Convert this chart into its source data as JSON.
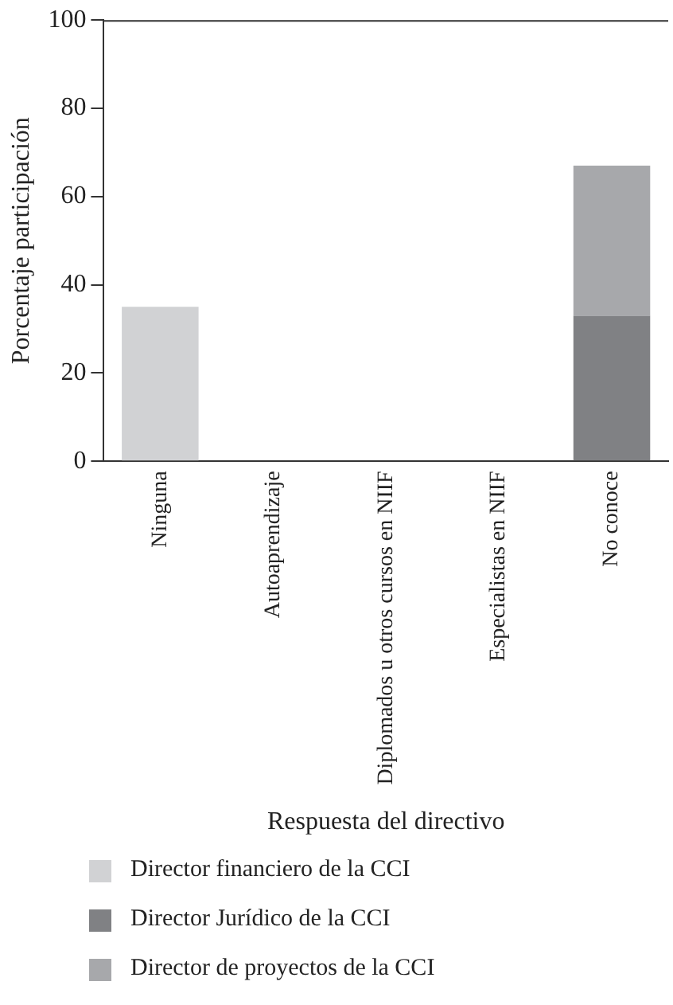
{
  "chart_data": {
    "type": "bar",
    "stacked": true,
    "xlabel": "Respuesta del directivo",
    "ylabel": "Porcentaje participación",
    "categories": [
      "Ninguna",
      "Autoaprendizaje",
      "Diplomados u otros cursos en NIIF",
      "Especialistas en NIIF",
      "No conoce"
    ],
    "series": [
      {
        "name": "Director financiero de la CCI",
        "color": "#d1d2d4",
        "values": [
          35,
          0,
          0,
          0,
          0
        ]
      },
      {
        "name": "Director Jurídico de la CCI",
        "color": "#808184",
        "values": [
          0,
          0,
          0,
          0,
          33
        ]
      },
      {
        "name": "Director de proyectos de la CCI",
        "color": "#a7a8ab",
        "values": [
          0,
          0,
          0,
          0,
          34
        ]
      }
    ],
    "ylim": [
      0,
      100
    ],
    "yticks": [
      0,
      20,
      40,
      60,
      80,
      100
    ],
    "legend": "bottom"
  }
}
